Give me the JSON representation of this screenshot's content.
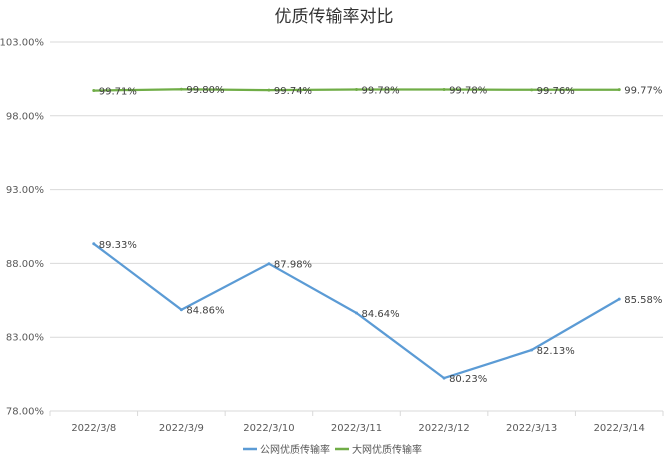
{
  "chart_data": {
    "type": "line",
    "title": "优质传输率对比",
    "categories": [
      "2022/3/8",
      "2022/3/9",
      "2022/3/10",
      "2022/3/11",
      "2022/3/12",
      "2022/3/13",
      "2022/3/14"
    ],
    "series": [
      {
        "name": "公网优质传输率",
        "color": "#5b9bd5",
        "values": [
          89.33,
          84.86,
          87.98,
          84.64,
          80.23,
          82.13,
          85.58
        ],
        "labels": [
          "89.33%",
          "84.86%",
          "87.98%",
          "84.64%",
          "80.23%",
          "82.13%",
          "85.58%"
        ]
      },
      {
        "name": "大网优质传输率",
        "color": "#70ad47",
        "values": [
          99.71,
          99.8,
          99.74,
          99.78,
          99.78,
          99.76,
          99.77
        ],
        "labels": [
          "99.71%",
          "99.80%",
          "99.74%",
          "99.78%",
          "99.78%",
          "99.76%",
          "99.77%"
        ]
      }
    ],
    "ylim": [
      78,
      103
    ],
    "yticks": [
      78,
      83,
      88,
      93,
      98,
      103
    ],
    "ytick_labels": [
      "78.00%",
      "83.00%",
      "88.00%",
      "93.00%",
      "98.00%",
      "103.00%"
    ],
    "grid": true,
    "legend_position": "bottom"
  }
}
